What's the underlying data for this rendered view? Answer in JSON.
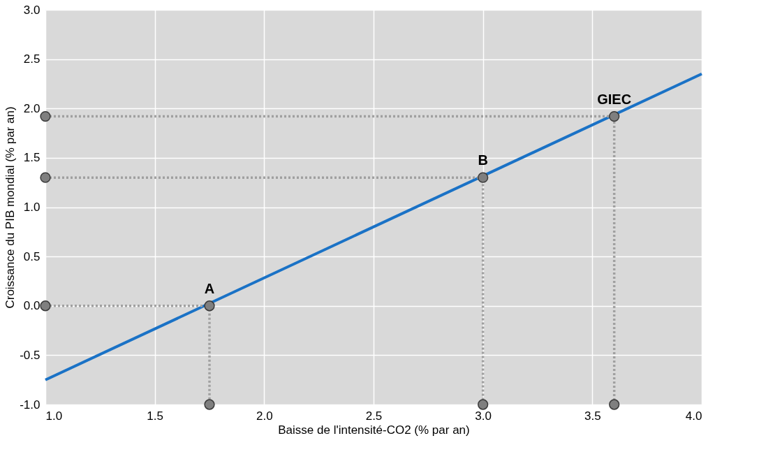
{
  "chart_data": {
    "type": "line",
    "xlabel": "Baisse de l'intensité-CO2 (% par an)",
    "ylabel": "Croissance du PIB mondial (% par an)",
    "xlim": [
      1.0,
      4.0
    ],
    "ylim": [
      -1.0,
      3.0
    ],
    "xticks": [
      {
        "value": 1,
        "label": "1.0"
      },
      {
        "value": 1.5,
        "label": "1.5"
      },
      {
        "value": 2,
        "label": "2.0"
      },
      {
        "value": 2.5,
        "label": "2.5"
      },
      {
        "value": 3,
        "label": "3.0"
      },
      {
        "value": 3.5,
        "label": "3.5"
      },
      {
        "value": 4,
        "label": "4.0"
      }
    ],
    "yticks": [
      {
        "value": -1,
        "label": "-1.0"
      },
      {
        "value": -0.5,
        "label": "-0.5"
      },
      {
        "value": 0,
        "label": "0.0"
      },
      {
        "value": 0.5,
        "label": "0.5"
      },
      {
        "value": 1,
        "label": "1.0"
      },
      {
        "value": 1.5,
        "label": "1.5"
      },
      {
        "value": 2,
        "label": "2.0"
      },
      {
        "value": 2.5,
        "label": "2.5"
      },
      {
        "value": 3,
        "label": "3.0"
      }
    ],
    "grid": true,
    "series": [
      {
        "color": "#1a72c6",
        "x": [
          1.0,
          4.0
        ],
        "values": [
          -0.75,
          2.35
        ],
        "marker": "none",
        "line_style": "solid"
      },
      {
        "color": "#a0a0a0",
        "x": [
          1.0,
          1.75,
          1.75
        ],
        "values": [
          0.0,
          0.0,
          -1.0
        ],
        "marker": "circle",
        "line_style": "dotted"
      },
      {
        "color": "#a0a0a0",
        "x": [
          1.0,
          3.0,
          3.0
        ],
        "values": [
          1.3,
          1.3,
          -1.0
        ],
        "marker": "circle",
        "line_style": "dotted"
      },
      {
        "color": "#a0a0a0",
        "x": [
          1.0,
          3.6,
          3.6
        ],
        "values": [
          1.92,
          1.92,
          -1.0
        ],
        "marker": "circle",
        "line_style": "dotted"
      }
    ],
    "annotations": [
      {
        "text": "A",
        "x": 1.75,
        "y": 0.0
      },
      {
        "text": "B",
        "x": 3.0,
        "y": 1.3
      },
      {
        "text": "GIEC",
        "x": 3.6,
        "y": 1.92
      }
    ]
  }
}
